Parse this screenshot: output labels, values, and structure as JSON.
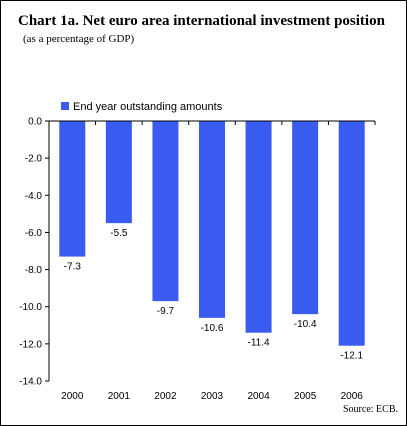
{
  "header": {
    "title": "Chart 1a. Net euro area international investment position",
    "subtitle": "(as a percentage of GDP)"
  },
  "footer": {
    "source": "Source: ECB."
  },
  "colors": {
    "bar": "#3a5bf0",
    "axis": "#000000"
  },
  "chart_data": {
    "type": "bar",
    "title": "Chart 1a. Net euro area international investment position",
    "subtitle": "(as a percentage of GDP)",
    "categories": [
      "2000",
      "2001",
      "2002",
      "2003",
      "2004",
      "2005",
      "2006"
    ],
    "series": [
      {
        "name": "End year outstanding amounts",
        "values": [
          -7.3,
          -5.5,
          -9.7,
          -10.6,
          -11.4,
          -10.4,
          -12.1
        ],
        "labels": [
          "-7.3",
          "-5.5",
          "-9.7",
          "-10.6",
          "-11.4",
          "-10.4",
          "-12.1"
        ]
      }
    ],
    "ylim": [
      -14.0,
      0.0
    ],
    "yticks": [
      "0.0",
      "-2.0",
      "-4.0",
      "-6.0",
      "-8.0",
      "-10.0",
      "-12.0",
      "-14.0"
    ],
    "ytick_values": [
      0,
      -2,
      -4,
      -6,
      -8,
      -10,
      -12,
      -14
    ],
    "grid": false,
    "legend_position": "top-left"
  }
}
